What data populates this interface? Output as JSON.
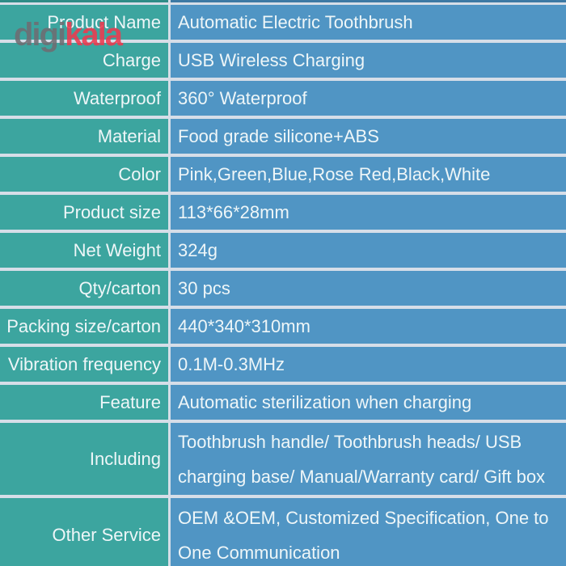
{
  "watermark": {
    "part1": "digi",
    "part2": "kala",
    "gray_color": "#6f6d72",
    "red_color": "#ee3a4f"
  },
  "colors": {
    "label_column_bg": "#3ca59f",
    "value_column_bg": "#5095c4",
    "separator": "#d6dee8",
    "text": "#eef6f8"
  },
  "table": {
    "rows": [
      {
        "label": "Product Name",
        "value": "Automatic Electric Toothbrush"
      },
      {
        "label": "Charge",
        "value": "USB Wireless Charging"
      },
      {
        "label": "Waterproof",
        "value": "360° Waterproof"
      },
      {
        "label": "Material",
        "value": "Food grade silicone+ABS"
      },
      {
        "label": "Color",
        "value": "Pink,Green,Blue,Rose Red,Black,White"
      },
      {
        "label": "Product size",
        "value": "113*66*28mm"
      },
      {
        "label": "Net Weight",
        "value": "324g"
      },
      {
        "label": "Qty/carton",
        "value": "30 pcs"
      },
      {
        "label": "Packing size/carton",
        "value": "440*340*310mm"
      },
      {
        "label": "Vibration frequency",
        "value": "0.1M-0.3MHz"
      },
      {
        "label": "Feature",
        "value": "Automatic sterilization when charging"
      },
      {
        "label": "Including",
        "value": "Toothbrush handle/ Toothbrush heads/ USB\ncharging base/ Manual/Warranty card/ Gift box"
      },
      {
        "label": "Other Service",
        "value": "OEM &OEM, Customized Specification, One to\nOne Communication"
      }
    ]
  }
}
